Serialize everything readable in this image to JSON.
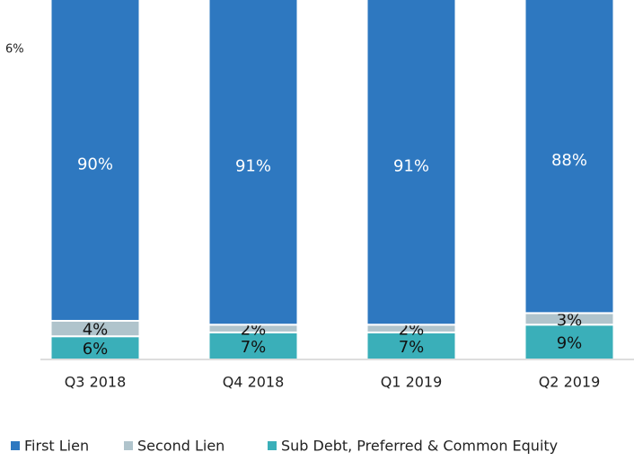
{
  "chart_data": {
    "type": "bar",
    "stacked": true,
    "annotations": [
      "6%"
    ],
    "categories": [
      "Q3 2018",
      "Q4 2018",
      "Q1 2019",
      "Q2 2019"
    ],
    "series": [
      {
        "name": "First Lien",
        "color": "#2e78c0",
        "values": [
          90,
          91,
          91,
          88
        ],
        "value_labels": [
          "90%",
          "91%",
          "91%",
          "88%"
        ]
      },
      {
        "name": "Second Lien",
        "color": "#b0c4cc",
        "values": [
          4,
          2,
          2,
          3
        ],
        "value_labels": [
          "4%",
          "2%",
          "2%",
          "3%"
        ]
      },
      {
        "name": "Sub Debt, Preferred & Common Equity",
        "color": "#3aafb9",
        "values": [
          6,
          7,
          7,
          9
        ],
        "value_labels": [
          "6%",
          "7%",
          "7%",
          "9%"
        ]
      }
    ],
    "ylim": [
      0,
      100
    ]
  }
}
